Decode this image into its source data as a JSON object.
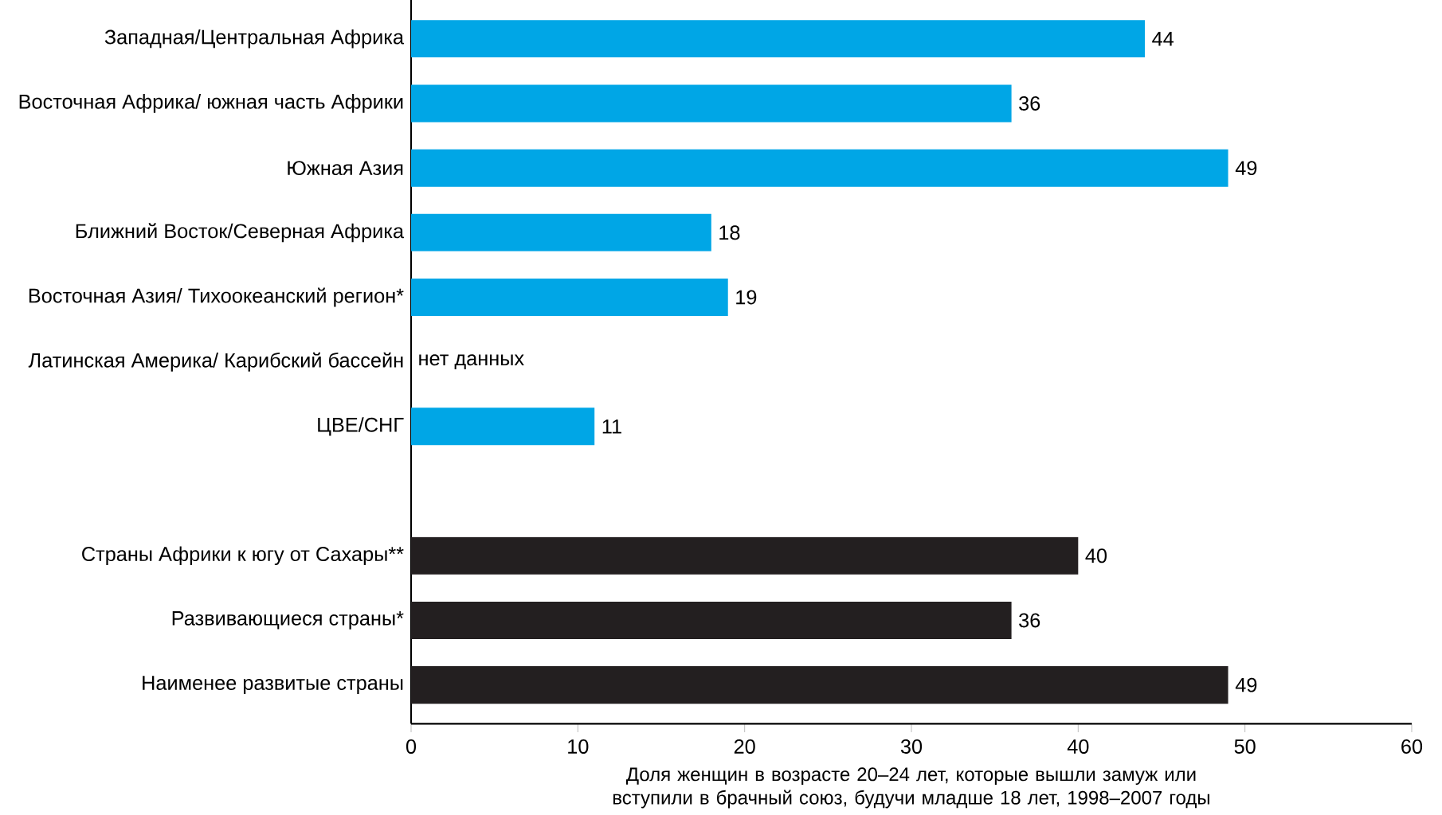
{
  "chart_data": {
    "type": "bar",
    "orientation": "horizontal",
    "categories": [
      "Западная/Центральная Африка",
      "Восточная Африка/ южная часть Африки",
      "Южная Азия",
      "Ближний Восток/Северная Африка",
      "Восточная Азия/ Тихоокеанский регион*",
      "Латинская Америка/ Карибский бассейн",
      "ЦВЕ/СНГ",
      null,
      "Страны Африки к югу от Сахары**",
      "Развивающиеся страны*",
      "Наименее развитые страны"
    ],
    "values": [
      44,
      36,
      49,
      18,
      19,
      null,
      11,
      null,
      40,
      36,
      49
    ],
    "colors": [
      "#00a6e6",
      "#00a6e6",
      "#00a6e6",
      "#00a6e6",
      "#00a6e6",
      null,
      "#00a6e6",
      null,
      "#231f20",
      "#231f20",
      "#231f20"
    ],
    "value_labels": [
      "44",
      "36",
      "49",
      "18",
      "19",
      "нет данных",
      "11",
      null,
      "40",
      "36",
      "49"
    ],
    "xlabel": "Доля женщин в возрасте 20–24 лет, которые вышли замуж или вступили в брачный союз, будучи младше 18 лет, 1998–2007 годы",
    "xlim": [
      0,
      60
    ],
    "xticks": [
      0,
      10,
      20,
      30,
      40,
      50,
      60
    ]
  }
}
